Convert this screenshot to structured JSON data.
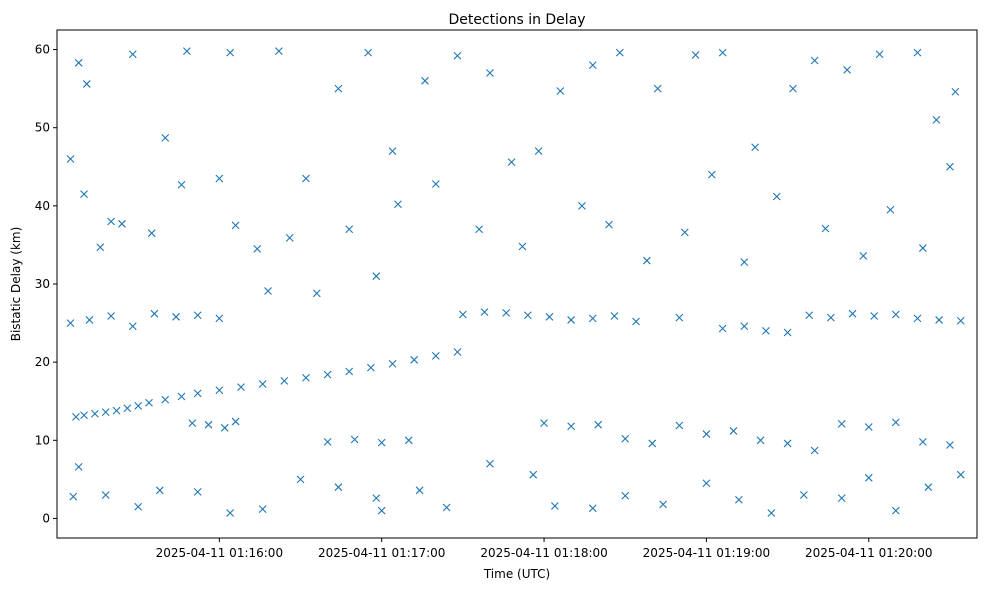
{
  "chart_data": {
    "type": "scatter",
    "title": "Detections in Delay",
    "xlabel": "Time (UTC)",
    "ylabel": "Bistatic Delay (km)",
    "x_unit": "time",
    "xlim": [
      "2025-04-11 01:15:00",
      "2025-04-11 01:20:40"
    ],
    "ylim": [
      -2.5,
      62.5
    ],
    "x_ticks": [
      "2025-04-11 01:16:00",
      "2025-04-11 01:17:00",
      "2025-04-11 01:18:00",
      "2025-04-11 01:19:00",
      "2025-04-11 01:20:00"
    ],
    "y_ticks": [
      0,
      10,
      20,
      30,
      40,
      50,
      60
    ],
    "marker": "x",
    "color": "#1f77b4",
    "grid": false,
    "legend": "none",
    "series": [
      {
        "points": [
          [
            "2025-04-11 01:15:07",
            13.0
          ],
          [
            "2025-04-11 01:15:10",
            13.2
          ],
          [
            "2025-04-11 01:15:14",
            13.4
          ],
          [
            "2025-04-11 01:15:18",
            13.6
          ],
          [
            "2025-04-11 01:15:22",
            13.8
          ],
          [
            "2025-04-11 01:15:26",
            14.1
          ],
          [
            "2025-04-11 01:15:30",
            14.4
          ],
          [
            "2025-04-11 01:15:34",
            14.8
          ],
          [
            "2025-04-11 01:15:40",
            15.2
          ],
          [
            "2025-04-11 01:15:46",
            15.6
          ],
          [
            "2025-04-11 01:15:52",
            16.0
          ],
          [
            "2025-04-11 01:16:00",
            16.4
          ],
          [
            "2025-04-11 01:16:08",
            16.8
          ],
          [
            "2025-04-11 01:16:16",
            17.2
          ],
          [
            "2025-04-11 01:16:24",
            17.6
          ],
          [
            "2025-04-11 01:16:32",
            18.0
          ],
          [
            "2025-04-11 01:16:40",
            18.4
          ],
          [
            "2025-04-11 01:16:48",
            18.8
          ],
          [
            "2025-04-11 01:16:56",
            19.3
          ],
          [
            "2025-04-11 01:17:04",
            19.8
          ],
          [
            "2025-04-11 01:17:12",
            20.3
          ],
          [
            "2025-04-11 01:17:20",
            20.8
          ],
          [
            "2025-04-11 01:17:28",
            21.3
          ],
          [
            "2025-04-11 01:15:05",
            25.0
          ],
          [
            "2025-04-11 01:15:12",
            25.4
          ],
          [
            "2025-04-11 01:15:20",
            25.9
          ],
          [
            "2025-04-11 01:15:28",
            24.6
          ],
          [
            "2025-04-11 01:15:36",
            26.2
          ],
          [
            "2025-04-11 01:15:44",
            25.8
          ],
          [
            "2025-04-11 01:15:52",
            26.0
          ],
          [
            "2025-04-11 01:16:00",
            25.6
          ],
          [
            "2025-04-11 01:17:30",
            26.1
          ],
          [
            "2025-04-11 01:17:38",
            26.4
          ],
          [
            "2025-04-11 01:17:46",
            26.3
          ],
          [
            "2025-04-11 01:17:54",
            26.0
          ],
          [
            "2025-04-11 01:18:02",
            25.8
          ],
          [
            "2025-04-11 01:18:10",
            25.4
          ],
          [
            "2025-04-11 01:18:18",
            25.6
          ],
          [
            "2025-04-11 01:18:26",
            25.9
          ],
          [
            "2025-04-11 01:18:34",
            25.2
          ],
          [
            "2025-04-11 01:18:50",
            25.7
          ],
          [
            "2025-04-11 01:19:06",
            24.3
          ],
          [
            "2025-04-11 01:19:14",
            24.6
          ],
          [
            "2025-04-11 01:19:22",
            24.0
          ],
          [
            "2025-04-11 01:19:30",
            23.8
          ],
          [
            "2025-04-11 01:19:38",
            26.0
          ],
          [
            "2025-04-11 01:19:46",
            25.7
          ],
          [
            "2025-04-11 01:19:54",
            26.2
          ],
          [
            "2025-04-11 01:20:02",
            25.9
          ],
          [
            "2025-04-11 01:20:10",
            26.1
          ],
          [
            "2025-04-11 01:20:18",
            25.6
          ],
          [
            "2025-04-11 01:20:26",
            25.4
          ],
          [
            "2025-04-11 01:20:34",
            25.3
          ],
          [
            "2025-04-11 01:15:50",
            12.2
          ],
          [
            "2025-04-11 01:15:56",
            12.0
          ],
          [
            "2025-04-11 01:16:02",
            11.6
          ],
          [
            "2025-04-11 01:16:06",
            12.4
          ],
          [
            "2025-04-11 01:16:40",
            9.8
          ],
          [
            "2025-04-11 01:16:50",
            10.1
          ],
          [
            "2025-04-11 01:17:00",
            9.7
          ],
          [
            "2025-04-11 01:17:10",
            10.0
          ],
          [
            "2025-04-11 01:18:00",
            12.2
          ],
          [
            "2025-04-11 01:18:10",
            11.8
          ],
          [
            "2025-04-11 01:18:20",
            12.0
          ],
          [
            "2025-04-11 01:18:30",
            10.2
          ],
          [
            "2025-04-11 01:18:40",
            9.6
          ],
          [
            "2025-04-11 01:18:50",
            11.9
          ],
          [
            "2025-04-11 01:19:00",
            10.8
          ],
          [
            "2025-04-11 01:19:10",
            11.2
          ],
          [
            "2025-04-11 01:19:20",
            10.0
          ],
          [
            "2025-04-11 01:19:30",
            9.6
          ],
          [
            "2025-04-11 01:19:40",
            8.7
          ],
          [
            "2025-04-11 01:19:50",
            12.1
          ],
          [
            "2025-04-11 01:20:00",
            11.7
          ],
          [
            "2025-04-11 01:20:10",
            12.3
          ],
          [
            "2025-04-11 01:20:20",
            9.8
          ],
          [
            "2025-04-11 01:20:30",
            9.4
          ],
          [
            "2025-04-11 01:15:05",
            46.0
          ],
          [
            "2025-04-11 01:15:08",
            58.3
          ],
          [
            "2025-04-11 01:15:11",
            55.6
          ],
          [
            "2025-04-11 01:15:20",
            38.0
          ],
          [
            "2025-04-11 01:15:28",
            59.4
          ],
          [
            "2025-04-11 01:15:40",
            48.7
          ],
          [
            "2025-04-11 01:15:48",
            59.8
          ],
          [
            "2025-04-11 01:16:00",
            43.5
          ],
          [
            "2025-04-11 01:16:04",
            59.6
          ],
          [
            "2025-04-11 01:16:14",
            34.5
          ],
          [
            "2025-04-11 01:16:22",
            59.8
          ],
          [
            "2025-04-11 01:16:32",
            43.5
          ],
          [
            "2025-04-11 01:16:44",
            55.0
          ],
          [
            "2025-04-11 01:16:55",
            59.6
          ],
          [
            "2025-04-11 01:17:04",
            47.0
          ],
          [
            "2025-04-11 01:17:16",
            56.0
          ],
          [
            "2025-04-11 01:17:28",
            59.2
          ],
          [
            "2025-04-11 01:17:40",
            57.0
          ],
          [
            "2025-04-11 01:17:52",
            34.8
          ],
          [
            "2025-04-11 01:17:58",
            47.0
          ],
          [
            "2025-04-11 01:18:06",
            54.7
          ],
          [
            "2025-04-11 01:18:18",
            58.0
          ],
          [
            "2025-04-11 01:18:28",
            59.6
          ],
          [
            "2025-04-11 01:18:42",
            55.0
          ],
          [
            "2025-04-11 01:18:56",
            59.3
          ],
          [
            "2025-04-11 01:19:06",
            59.6
          ],
          [
            "2025-04-11 01:19:18",
            47.5
          ],
          [
            "2025-04-11 01:19:32",
            55.0
          ],
          [
            "2025-04-11 01:19:40",
            58.6
          ],
          [
            "2025-04-11 01:19:52",
            57.4
          ],
          [
            "2025-04-11 01:20:04",
            59.4
          ],
          [
            "2025-04-11 01:20:18",
            59.6
          ],
          [
            "2025-04-11 01:20:25",
            51.0
          ],
          [
            "2025-04-11 01:20:32",
            54.6
          ],
          [
            "2025-04-11 01:15:10",
            41.5
          ],
          [
            "2025-04-11 01:15:16",
            34.7
          ],
          [
            "2025-04-11 01:15:24",
            37.7
          ],
          [
            "2025-04-11 01:15:35",
            36.5
          ],
          [
            "2025-04-11 01:15:46",
            42.7
          ],
          [
            "2025-04-11 01:16:06",
            37.5
          ],
          [
            "2025-04-11 01:16:18",
            29.1
          ],
          [
            "2025-04-11 01:16:26",
            35.9
          ],
          [
            "2025-04-11 01:16:36",
            28.8
          ],
          [
            "2025-04-11 01:16:48",
            37.0
          ],
          [
            "2025-04-11 01:16:58",
            31.0
          ],
          [
            "2025-04-11 01:17:06",
            40.2
          ],
          [
            "2025-04-11 01:17:20",
            42.8
          ],
          [
            "2025-04-11 01:17:36",
            37.0
          ],
          [
            "2025-04-11 01:17:48",
            45.6
          ],
          [
            "2025-04-11 01:18:14",
            40.0
          ],
          [
            "2025-04-11 01:18:24",
            37.6
          ],
          [
            "2025-04-11 01:18:38",
            33.0
          ],
          [
            "2025-04-11 01:18:52",
            36.6
          ],
          [
            "2025-04-11 01:19:02",
            44.0
          ],
          [
            "2025-04-11 01:19:14",
            32.8
          ],
          [
            "2025-04-11 01:19:26",
            41.2
          ],
          [
            "2025-04-11 01:19:44",
            37.1
          ],
          [
            "2025-04-11 01:19:58",
            33.6
          ],
          [
            "2025-04-11 01:20:08",
            39.5
          ],
          [
            "2025-04-11 01:20:20",
            34.6
          ],
          [
            "2025-04-11 01:20:30",
            45.0
          ],
          [
            "2025-04-11 01:15:06",
            2.8
          ],
          [
            "2025-04-11 01:15:08",
            6.6
          ],
          [
            "2025-04-11 01:15:18",
            3.0
          ],
          [
            "2025-04-11 01:15:30",
            1.5
          ],
          [
            "2025-04-11 01:15:38",
            3.6
          ],
          [
            "2025-04-11 01:15:52",
            3.4
          ],
          [
            "2025-04-11 01:16:04",
            0.7
          ],
          [
            "2025-04-11 01:16:16",
            1.2
          ],
          [
            "2025-04-11 01:16:30",
            5.0
          ],
          [
            "2025-04-11 01:16:44",
            4.0
          ],
          [
            "2025-04-11 01:16:58",
            2.6
          ],
          [
            "2025-04-11 01:17:00",
            1.0
          ],
          [
            "2025-04-11 01:17:14",
            3.6
          ],
          [
            "2025-04-11 01:17:24",
            1.4
          ],
          [
            "2025-04-11 01:17:40",
            7.0
          ],
          [
            "2025-04-11 01:17:56",
            5.6
          ],
          [
            "2025-04-11 01:18:04",
            1.6
          ],
          [
            "2025-04-11 01:18:18",
            1.3
          ],
          [
            "2025-04-11 01:18:30",
            2.9
          ],
          [
            "2025-04-11 01:18:44",
            1.8
          ],
          [
            "2025-04-11 01:19:00",
            4.5
          ],
          [
            "2025-04-11 01:19:12",
            2.4
          ],
          [
            "2025-04-11 01:19:24",
            0.7
          ],
          [
            "2025-04-11 01:19:36",
            3.0
          ],
          [
            "2025-04-11 01:19:50",
            2.6
          ],
          [
            "2025-04-11 01:20:00",
            5.2
          ],
          [
            "2025-04-11 01:20:10",
            1.0
          ],
          [
            "2025-04-11 01:20:22",
            4.0
          ],
          [
            "2025-04-11 01:20:34",
            5.6
          ]
        ]
      }
    ]
  }
}
